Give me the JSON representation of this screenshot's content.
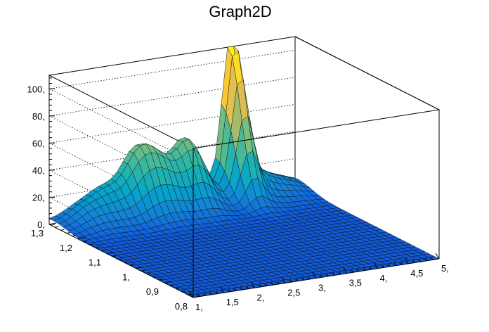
{
  "chart_data": {
    "type": "surface",
    "title": "Graph2D",
    "xlabel": "",
    "ylabel": "",
    "zlabel": "",
    "xlim": [
      1,
      5
    ],
    "ylim": [
      0.8,
      1.3
    ],
    "zlim": [
      0,
      110
    ],
    "x_tick_labels": [
      "1,",
      "1,5",
      "2,",
      "2,5",
      "3,",
      "3,5",
      "4,",
      "4,5",
      "5,"
    ],
    "x_tick_values": [
      1,
      1.5,
      2,
      2.5,
      3,
      3.5,
      4,
      4.5,
      5
    ],
    "y_tick_labels": [
      "0,8",
      "0,9",
      "1,",
      "1,1",
      "1,2",
      "1,3"
    ],
    "y_tick_values": [
      0.8,
      0.9,
      1.0,
      1.1,
      1.2,
      1.3
    ],
    "z_tick_labels": [
      "0,",
      "20,",
      "40,",
      "60,",
      "80,",
      "100,"
    ],
    "z_tick_values": [
      0,
      20,
      40,
      60,
      80,
      100
    ],
    "grid": true,
    "colormap": [
      "#352a87",
      "#0f5cdd",
      "#1481d6",
      "#06a4ca",
      "#2eb7a4",
      "#87bf77",
      "#d1bb59",
      "#fec832",
      "#f9fb0e"
    ],
    "peaks": [
      {
        "x": 1.45,
        "y": 1.27,
        "height": 9
      },
      {
        "x": 1.85,
        "y": 1.29,
        "height": 16
      },
      {
        "x": 2.35,
        "y": 1.29,
        "height": 36
      },
      {
        "x": 2.7,
        "y": 1.28,
        "height": 28
      },
      {
        "x": 3.2,
        "y": 1.29,
        "height": 44
      },
      {
        "x": 3.95,
        "y": 1.3,
        "height": 111
      },
      {
        "x": 4.25,
        "y": 1.29,
        "height": 15
      },
      {
        "x": 4.7,
        "y": 1.28,
        "height": 6
      }
    ]
  }
}
